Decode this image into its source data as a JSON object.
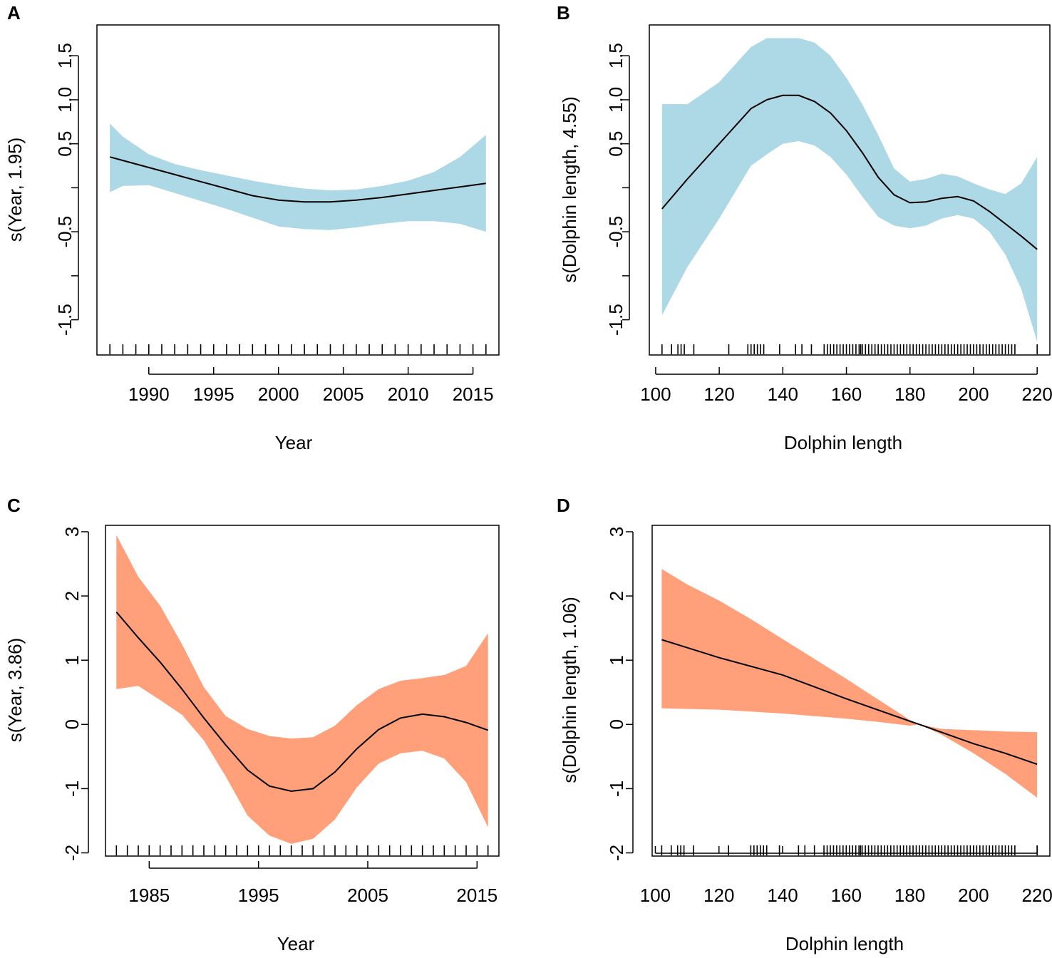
{
  "chart_data": [
    {
      "panel": "A",
      "type": "area",
      "xlabel": "Year",
      "ylabel": "s(Year, 1.95)",
      "xlim": [
        1986,
        2017
      ],
      "ylim": [
        -1.9,
        1.85
      ],
      "xticks": [
        1990,
        1995,
        2000,
        2005,
        2010,
        2015
      ],
      "xtick_labels": [
        "1990",
        "1995",
        "2000",
        "2005",
        "2010",
        "2015"
      ],
      "yticks": [
        -1.5,
        -1.0,
        -0.5,
        0.0,
        0.5,
        1.0,
        1.5
      ],
      "ytick_labels": [
        "-1.5",
        "",
        "-0.5",
        "",
        "0.5",
        "1.0",
        "1.5"
      ],
      "band_color": "#add8e6",
      "line_color": "#000000",
      "series": [
        {
          "name": "fit",
          "x": [
            1987,
            1988,
            1990,
            1992,
            1994,
            1996,
            1998,
            2000,
            2002,
            2004,
            2006,
            2008,
            2010,
            2012,
            2014,
            2016
          ],
          "values": [
            0.35,
            0.31,
            0.23,
            0.15,
            0.07,
            -0.01,
            -0.09,
            -0.14,
            -0.16,
            -0.16,
            -0.14,
            -0.11,
            -0.07,
            -0.03,
            0.01,
            0.05
          ]
        },
        {
          "name": "upper",
          "x": [
            1987,
            1988,
            1990,
            1992,
            1994,
            1996,
            1998,
            2000,
            2002,
            2004,
            2006,
            2008,
            2010,
            2012,
            2014,
            2016
          ],
          "values": [
            0.73,
            0.58,
            0.38,
            0.27,
            0.2,
            0.14,
            0.08,
            0.03,
            -0.01,
            -0.03,
            -0.02,
            0.02,
            0.08,
            0.18,
            0.35,
            0.6
          ]
        },
        {
          "name": "lower",
          "x": [
            1987,
            1988,
            1990,
            1992,
            1994,
            1996,
            1998,
            2000,
            2002,
            2004,
            2006,
            2008,
            2010,
            2012,
            2014,
            2016
          ],
          "values": [
            -0.05,
            0.02,
            0.03,
            -0.06,
            -0.15,
            -0.24,
            -0.34,
            -0.44,
            -0.47,
            -0.48,
            -0.45,
            -0.41,
            -0.38,
            -0.38,
            -0.41,
            -0.5
          ]
        }
      ],
      "rug": [
        1987,
        1988,
        1989,
        1990,
        1991,
        1992,
        1993,
        1994,
        1995,
        1996,
        1997,
        1998,
        1999,
        2000,
        2001,
        2002,
        2003,
        2004,
        2005,
        2006,
        2007,
        2008,
        2009,
        2010,
        2011,
        2012,
        2013,
        2014,
        2015,
        2016
      ]
    },
    {
      "panel": "B",
      "type": "area",
      "xlabel": "Dolphin length",
      "ylabel": "s(Dolphin length, 4.55)",
      "xlim": [
        98,
        224
      ],
      "ylim": [
        -1.9,
        1.85
      ],
      "xticks": [
        100,
        120,
        140,
        160,
        180,
        200,
        220
      ],
      "xtick_labels": [
        "100",
        "120",
        "140",
        "160",
        "180",
        "200",
        "220"
      ],
      "yticks": [
        -1.5,
        -1.0,
        -0.5,
        0.0,
        0.5,
        1.0,
        1.5
      ],
      "ytick_labels": [
        "-1.5",
        "",
        "-0.5",
        "",
        "0.5",
        "1.0",
        "1.5"
      ],
      "band_color": "#add8e6",
      "line_color": "#000000",
      "series": [
        {
          "name": "fit",
          "x": [
            102,
            110,
            120,
            130,
            135,
            140,
            145,
            150,
            155,
            160,
            165,
            170,
            175,
            180,
            185,
            190,
            195,
            200,
            205,
            210,
            215,
            220
          ],
          "values": [
            -0.24,
            0.1,
            0.5,
            0.9,
            1.0,
            1.05,
            1.05,
            0.98,
            0.85,
            0.65,
            0.4,
            0.12,
            -0.08,
            -0.17,
            -0.16,
            -0.12,
            -0.1,
            -0.15,
            -0.27,
            -0.41,
            -0.55,
            -0.7
          ]
        },
        {
          "name": "upper",
          "x": [
            102,
            110,
            120,
            130,
            135,
            140,
            145,
            150,
            155,
            160,
            165,
            170,
            175,
            180,
            185,
            190,
            195,
            200,
            205,
            210,
            215,
            220
          ],
          "values": [
            0.95,
            0.95,
            1.2,
            1.6,
            1.7,
            1.7,
            1.7,
            1.65,
            1.5,
            1.25,
            0.95,
            0.6,
            0.22,
            0.07,
            0.1,
            0.16,
            0.13,
            0.05,
            -0.02,
            -0.07,
            0.05,
            0.35
          ]
        },
        {
          "name": "lower",
          "x": [
            102,
            110,
            120,
            130,
            135,
            140,
            145,
            150,
            155,
            160,
            165,
            170,
            175,
            180,
            185,
            190,
            195,
            200,
            205,
            210,
            215,
            220
          ],
          "values": [
            -1.45,
            -0.9,
            -0.35,
            0.25,
            0.38,
            0.5,
            0.53,
            0.48,
            0.35,
            0.15,
            -0.1,
            -0.33,
            -0.43,
            -0.46,
            -0.43,
            -0.35,
            -0.31,
            -0.35,
            -0.5,
            -0.76,
            -1.15,
            -1.75
          ]
        }
      ],
      "rug": [
        102,
        105,
        107,
        108,
        109,
        112,
        123,
        129,
        130,
        131,
        132,
        133,
        134,
        139,
        144,
        146,
        149,
        153,
        154,
        155,
        156,
        157,
        158,
        159,
        160,
        161,
        162,
        163,
        164,
        164.5,
        165,
        166,
        167,
        168,
        169,
        170,
        171,
        172,
        173,
        174,
        175,
        176,
        177,
        178,
        179,
        180,
        181,
        182,
        183,
        184,
        185,
        186,
        187,
        188,
        189,
        190,
        191,
        192,
        193,
        194,
        195,
        196,
        197,
        198,
        199,
        200,
        201,
        202,
        203,
        204,
        205,
        206,
        207,
        208,
        209,
        210,
        211,
        212,
        213,
        220
      ]
    },
    {
      "panel": "C",
      "type": "area",
      "xlabel": "Year",
      "ylabel": "s(Year, 3.86)",
      "xlim": [
        1981,
        2017
      ],
      "ylim": [
        -2.05,
        3.1
      ],
      "xticks": [
        1985,
        1995,
        2005,
        2015
      ],
      "xtick_labels": [
        "1985",
        "1995",
        "2005",
        "2015"
      ],
      "yticks": [
        -2,
        -1,
        0,
        1,
        2,
        3
      ],
      "ytick_labels": [
        "-2",
        "-1",
        "0",
        "1",
        "2",
        "3"
      ],
      "band_color": "#ffa07a",
      "line_color": "#000000",
      "series": [
        {
          "name": "fit",
          "x": [
            1982,
            1984,
            1986,
            1988,
            1990,
            1992,
            1994,
            1996,
            1998,
            2000,
            2002,
            2004,
            2006,
            2008,
            2010,
            2012,
            2014,
            2016
          ],
          "values": [
            1.75,
            1.35,
            0.97,
            0.55,
            0.1,
            -0.32,
            -0.71,
            -0.96,
            -1.04,
            -1.0,
            -0.74,
            -0.38,
            -0.08,
            0.1,
            0.16,
            0.12,
            0.03,
            -0.09
          ]
        },
        {
          "name": "upper",
          "x": [
            1982,
            1984,
            1986,
            1988,
            1990,
            1992,
            1994,
            1996,
            1998,
            2000,
            2002,
            2004,
            2006,
            2008,
            2010,
            2012,
            2014,
            2016
          ],
          "values": [
            2.95,
            2.3,
            1.85,
            1.25,
            0.58,
            0.13,
            -0.07,
            -0.18,
            -0.22,
            -0.2,
            -0.02,
            0.3,
            0.55,
            0.68,
            0.72,
            0.77,
            0.91,
            1.42
          ]
        },
        {
          "name": "lower",
          "x": [
            1982,
            1984,
            1986,
            1988,
            1990,
            1992,
            1994,
            1996,
            1998,
            2000,
            2002,
            2004,
            2006,
            2008,
            2010,
            2012,
            2014,
            2016
          ],
          "values": [
            0.55,
            0.6,
            0.38,
            0.15,
            -0.25,
            -0.81,
            -1.42,
            -1.73,
            -1.86,
            -1.78,
            -1.48,
            -0.98,
            -0.61,
            -0.45,
            -0.41,
            -0.53,
            -0.9,
            -1.6
          ]
        }
      ],
      "rug": [
        1982,
        1983,
        1984,
        1985,
        1986,
        1987,
        1988,
        1989,
        1990,
        1991,
        1992,
        1993,
        1994,
        1995,
        1996,
        1997,
        1998,
        1999,
        2000,
        2001,
        2002,
        2003,
        2004,
        2005,
        2006,
        2007,
        2008,
        2009,
        2010,
        2011,
        2012,
        2013,
        2014,
        2015,
        2016
      ]
    },
    {
      "panel": "D",
      "type": "area",
      "xlabel": "Dolphin length",
      "ylabel": "s(Dolphin length, 1.06)",
      "xlim": [
        99,
        224
      ],
      "ylim": [
        -2.05,
        3.1
      ],
      "xticks": [
        100,
        120,
        140,
        160,
        180,
        200,
        220
      ],
      "xtick_labels": [
        "100",
        "120",
        "140",
        "160",
        "180",
        "200",
        "220"
      ],
      "yticks": [
        -2,
        -1,
        0,
        1,
        2,
        3
      ],
      "ytick_labels": [
        "-2",
        "-1",
        "0",
        "1",
        "2",
        "3"
      ],
      "band_color": "#ffa07a",
      "line_color": "#000000",
      "series": [
        {
          "name": "fit",
          "x": [
            102,
            120,
            140,
            160,
            180,
            183,
            200,
            210,
            220
          ],
          "values": [
            1.32,
            1.04,
            0.77,
            0.4,
            0.05,
            0.0,
            -0.3,
            -0.45,
            -0.62
          ]
        },
        {
          "name": "upper",
          "x": [
            102,
            110,
            120,
            130,
            140,
            150,
            160,
            170,
            180,
            183,
            190,
            200,
            210,
            220
          ],
          "values": [
            2.42,
            2.18,
            1.93,
            1.64,
            1.33,
            1.02,
            0.71,
            0.39,
            0.07,
            0.0,
            -0.07,
            -0.09,
            -0.11,
            -0.12
          ]
        },
        {
          "name": "lower",
          "x": [
            102,
            120,
            140,
            160,
            170,
            180,
            183,
            190,
            200,
            210,
            220
          ],
          "values": [
            0.25,
            0.23,
            0.17,
            0.09,
            0.04,
            -0.02,
            0.0,
            -0.16,
            -0.45,
            -0.77,
            -1.14
          ]
        }
      ],
      "rug": [
        102,
        105,
        107,
        108,
        109,
        112,
        123,
        130,
        131,
        132,
        133,
        134,
        135,
        139,
        145,
        147,
        150,
        153,
        154,
        155,
        156,
        157,
        158,
        159,
        160,
        161,
        162,
        163,
        164,
        164.5,
        165,
        166,
        167,
        168,
        169,
        170,
        171,
        172,
        173,
        174,
        175,
        176,
        177,
        178,
        179,
        180,
        181,
        182,
        183,
        184,
        185,
        186,
        187,
        188,
        189,
        190,
        191,
        192,
        193,
        194,
        195,
        196,
        197,
        198,
        199,
        200,
        201,
        202,
        203,
        204,
        205,
        206,
        207,
        208,
        209,
        210,
        211,
        212,
        213,
        220
      ]
    }
  ]
}
